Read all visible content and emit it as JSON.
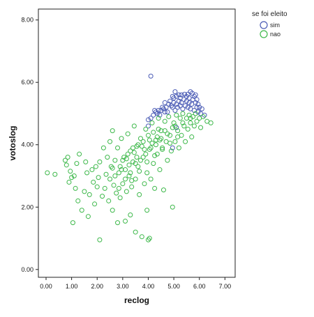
{
  "chart_data": {
    "type": "scatter",
    "xlabel": "reclog",
    "ylabel": "votoslog",
    "xlim": [
      -0.3,
      7.4
    ],
    "ylim": [
      -0.25,
      8.35
    ],
    "x_ticks": [
      "0.00",
      "1.00",
      "2.00",
      "3.00",
      "4.00",
      "5.00",
      "6.00",
      "7.00"
    ],
    "y_ticks": [
      "0.00",
      "2.00",
      "4.00",
      "6.00",
      "8.00"
    ],
    "legend": {
      "title": "se foi eleito",
      "position": "right"
    },
    "series": [
      {
        "name": "sim",
        "color": "#4a5bb5",
        "points": [
          [
            4.1,
            6.2
          ],
          [
            4.95,
            5.55
          ],
          [
            5.05,
            5.7
          ],
          [
            5.1,
            5.55
          ],
          [
            5.2,
            5.6
          ],
          [
            5.3,
            5.6
          ],
          [
            5.42,
            5.62
          ],
          [
            5.55,
            5.62
          ],
          [
            5.65,
            5.7
          ],
          [
            5.72,
            5.65
          ],
          [
            5.8,
            5.55
          ],
          [
            5.9,
            5.45
          ],
          [
            5.95,
            5.3
          ],
          [
            6.0,
            5.2
          ],
          [
            6.1,
            5.15
          ],
          [
            6.05,
            5.0
          ],
          [
            5.95,
            5.05
          ],
          [
            5.85,
            5.35
          ],
          [
            5.75,
            5.45
          ],
          [
            5.6,
            5.5
          ],
          [
            5.5,
            5.4
          ],
          [
            5.4,
            5.45
          ],
          [
            5.3,
            5.35
          ],
          [
            5.2,
            5.4
          ],
          [
            5.1,
            5.3
          ],
          [
            5.0,
            5.35
          ],
          [
            4.9,
            5.25
          ],
          [
            4.8,
            5.3
          ],
          [
            4.7,
            5.2
          ],
          [
            4.6,
            5.15
          ],
          [
            4.5,
            5.1
          ],
          [
            4.4,
            5.1
          ],
          [
            4.3,
            5.05
          ],
          [
            4.2,
            4.95
          ],
          [
            4.1,
            4.85
          ],
          [
            4.0,
            4.8
          ],
          [
            4.25,
            5.1
          ],
          [
            4.55,
            5.2
          ],
          [
            4.85,
            5.4
          ],
          [
            5.15,
            5.2
          ],
          [
            5.45,
            5.25
          ],
          [
            5.7,
            5.3
          ],
          [
            5.8,
            5.1
          ],
          [
            5.65,
            5.15
          ],
          [
            5.35,
            5.15
          ],
          [
            5.05,
            5.1
          ],
          [
            4.75,
            5.05
          ],
          [
            4.45,
            4.95
          ],
          [
            5.0,
            5.5
          ],
          [
            5.25,
            5.5
          ],
          [
            5.5,
            5.55
          ],
          [
            5.6,
            5.35
          ],
          [
            5.9,
            5.2
          ],
          [
            6.2,
            4.95
          ],
          [
            4.95,
            3.9
          ],
          [
            5.1,
            4.55
          ],
          [
            4.0,
            4.6
          ],
          [
            4.65,
            5.35
          ],
          [
            5.85,
            5.6
          ],
          [
            5.55,
            5.2
          ],
          [
            5.25,
            5.25
          ],
          [
            4.95,
            5.2
          ],
          [
            4.65,
            5.05
          ],
          [
            4.35,
            5.0
          ]
        ]
      },
      {
        "name": "nao",
        "color": "#3db84a",
        "points": [
          [
            0.05,
            3.1
          ],
          [
            0.35,
            3.05
          ],
          [
            0.75,
            3.5
          ],
          [
            0.8,
            3.35
          ],
          [
            0.85,
            3.6
          ],
          [
            0.9,
            2.8
          ],
          [
            0.95,
            3.15
          ],
          [
            1.0,
            2.95
          ],
          [
            1.05,
            1.5
          ],
          [
            1.1,
            3.0
          ],
          [
            1.15,
            2.6
          ],
          [
            1.2,
            3.4
          ],
          [
            1.25,
            2.2
          ],
          [
            1.3,
            3.7
          ],
          [
            1.4,
            1.9
          ],
          [
            1.5,
            2.5
          ],
          [
            1.55,
            3.45
          ],
          [
            1.6,
            3.1
          ],
          [
            1.65,
            1.7
          ],
          [
            1.7,
            2.4
          ],
          [
            1.8,
            3.2
          ],
          [
            1.85,
            2.8
          ],
          [
            1.9,
            2.1
          ],
          [
            1.95,
            3.3
          ],
          [
            2.0,
            2.65
          ],
          [
            2.05,
            2.95
          ],
          [
            2.1,
            3.45
          ],
          [
            2.1,
            0.95
          ],
          [
            2.2,
            2.35
          ],
          [
            2.25,
            3.9
          ],
          [
            2.3,
            2.6
          ],
          [
            2.35,
            3.05
          ],
          [
            2.4,
            3.6
          ],
          [
            2.45,
            2.2
          ],
          [
            2.5,
            4.1
          ],
          [
            2.5,
            2.9
          ],
          [
            2.55,
            3.3
          ],
          [
            2.6,
            1.9
          ],
          [
            2.6,
            4.45
          ],
          [
            2.65,
            2.7
          ],
          [
            2.7,
            3.5
          ],
          [
            2.75,
            2.45
          ],
          [
            2.8,
            1.5
          ],
          [
            2.8,
            3.9
          ],
          [
            2.85,
            3.1
          ],
          [
            2.9,
            2.3
          ],
          [
            2.95,
            4.2
          ],
          [
            3.0,
            2.75
          ],
          [
            3.05,
            3.6
          ],
          [
            3.1,
            1.55
          ],
          [
            3.1,
            3.2
          ],
          [
            3.15,
            2.5
          ],
          [
            3.2,
            4.35
          ],
          [
            3.25,
            3.0
          ],
          [
            3.3,
            1.75
          ],
          [
            3.3,
            3.8
          ],
          [
            3.35,
            2.65
          ],
          [
            3.4,
            3.45
          ],
          [
            3.45,
            4.6
          ],
          [
            3.5,
            2.9
          ],
          [
            3.5,
            1.2
          ],
          [
            3.55,
            3.95
          ],
          [
            3.6,
            3.3
          ],
          [
            3.65,
            2.4
          ],
          [
            3.7,
            4.2
          ],
          [
            3.75,
            1.05
          ],
          [
            3.8,
            3.6
          ],
          [
            3.85,
            2.75
          ],
          [
            3.9,
            4.5
          ],
          [
            3.95,
            1.9
          ],
          [
            3.95,
            3.1
          ],
          [
            4.0,
            0.95
          ],
          [
            4.05,
            1.0
          ],
          [
            4.05,
            3.85
          ],
          [
            4.1,
            2.9
          ],
          [
            4.15,
            4.7
          ],
          [
            4.2,
            3.4
          ],
          [
            4.25,
            2.6
          ],
          [
            4.3,
            4.15
          ],
          [
            4.35,
            3.7
          ],
          [
            4.4,
            4.85
          ],
          [
            4.45,
            3.2
          ],
          [
            4.5,
            4.45
          ],
          [
            4.55,
            3.9
          ],
          [
            4.6,
            2.55
          ],
          [
            4.65,
            4.75
          ],
          [
            4.7,
            4.1
          ],
          [
            4.75,
            3.5
          ],
          [
            4.8,
            4.9
          ],
          [
            4.85,
            4.3
          ],
          [
            4.9,
            3.8
          ],
          [
            4.95,
            2.0
          ],
          [
            5.0,
            4.7
          ],
          [
            5.05,
            4.1
          ],
          [
            5.1,
            4.95
          ],
          [
            5.15,
            4.45
          ],
          [
            5.2,
            3.9
          ],
          [
            5.25,
            4.85
          ],
          [
            5.3,
            4.3
          ],
          [
            5.35,
            5.0
          ],
          [
            5.4,
            4.6
          ],
          [
            5.45,
            4.1
          ],
          [
            5.5,
            4.85
          ],
          [
            5.55,
            4.5
          ],
          [
            5.6,
            4.95
          ],
          [
            5.65,
            4.7
          ],
          [
            5.7,
            4.25
          ],
          [
            5.75,
            4.9
          ],
          [
            5.8,
            4.6
          ],
          [
            5.85,
            5.0
          ],
          [
            5.9,
            4.75
          ],
          [
            6.0,
            4.85
          ],
          [
            6.05,
            4.55
          ],
          [
            6.15,
            4.9
          ],
          [
            6.3,
            4.75
          ],
          [
            6.45,
            4.7
          ],
          [
            3.0,
            3.5
          ],
          [
            3.2,
            3.7
          ],
          [
            3.4,
            3.9
          ],
          [
            3.6,
            4.0
          ],
          [
            3.8,
            4.1
          ],
          [
            4.0,
            4.3
          ],
          [
            4.2,
            4.4
          ],
          [
            4.4,
            4.5
          ],
          [
            3.1,
            2.9
          ],
          [
            3.3,
            3.1
          ],
          [
            3.5,
            3.4
          ],
          [
            3.7,
            3.5
          ],
          [
            3.9,
            3.7
          ],
          [
            4.1,
            3.9
          ],
          [
            4.3,
            4.0
          ],
          [
            4.5,
            4.2
          ],
          [
            2.9,
            3.3
          ],
          [
            3.15,
            3.55
          ],
          [
            3.45,
            3.75
          ],
          [
            3.75,
            3.95
          ],
          [
            4.05,
            4.15
          ],
          [
            4.35,
            4.25
          ],
          [
            4.65,
            4.45
          ],
          [
            4.95,
            4.55
          ],
          [
            2.7,
            3.0
          ],
          [
            2.95,
            3.2
          ],
          [
            3.25,
            3.35
          ],
          [
            3.55,
            3.6
          ],
          [
            3.85,
            3.85
          ],
          [
            4.15,
            4.05
          ],
          [
            4.45,
            4.15
          ],
          [
            4.75,
            4.35
          ],
          [
            5.05,
            4.6
          ],
          [
            5.35,
            4.7
          ],
          [
            5.65,
            4.85
          ],
          [
            2.6,
            3.25
          ],
          [
            2.85,
            2.6
          ],
          [
            3.35,
            2.85
          ],
          [
            3.65,
            3.15
          ],
          [
            3.95,
            3.45
          ],
          [
            4.25,
            3.65
          ],
          [
            4.55,
            3.85
          ],
          [
            4.85,
            4.05
          ],
          [
            5.15,
            4.25
          ]
        ]
      }
    ]
  }
}
